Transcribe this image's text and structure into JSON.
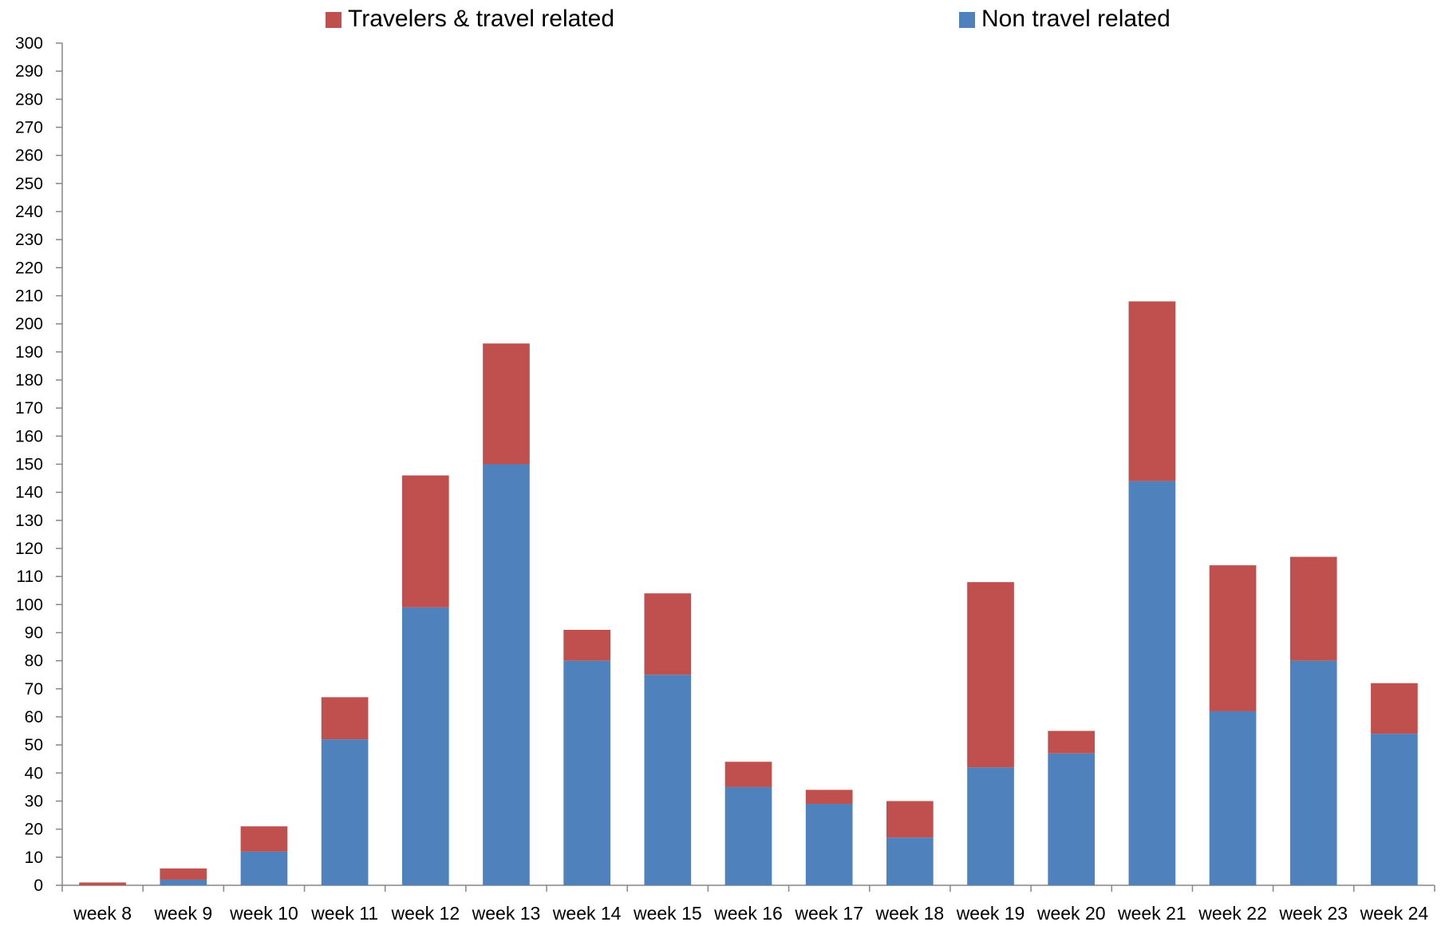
{
  "chart_data": {
    "type": "bar",
    "stacked": true,
    "categories": [
      "week 8",
      "week 9",
      "week 10",
      "week 11",
      "week 12",
      "week 13",
      "week 14",
      "week 15",
      "week 16",
      "week 17",
      "week 18",
      "week 19",
      "week 20",
      "week 21",
      "week 22",
      "week 23",
      "week 24"
    ],
    "series": [
      {
        "name": "Non travel related",
        "color": "#4F81BD",
        "values": [
          0,
          2,
          12,
          52,
          99,
          150,
          80,
          75,
          35,
          29,
          17,
          42,
          47,
          144,
          62,
          80,
          54
        ]
      },
      {
        "name": "Travelers & travel related",
        "color": "#C0504D",
        "values": [
          1,
          4,
          9,
          15,
          47,
          43,
          11,
          29,
          9,
          5,
          13,
          66,
          8,
          64,
          52,
          37,
          18
        ]
      }
    ],
    "legend_order": [
      "Travelers & travel related",
      "Non travel related"
    ],
    "legend_placement": "top",
    "ylim": [
      0,
      300
    ],
    "ytick_step": 10,
    "grid": false,
    "title": "",
    "xlabel": "",
    "ylabel": ""
  }
}
